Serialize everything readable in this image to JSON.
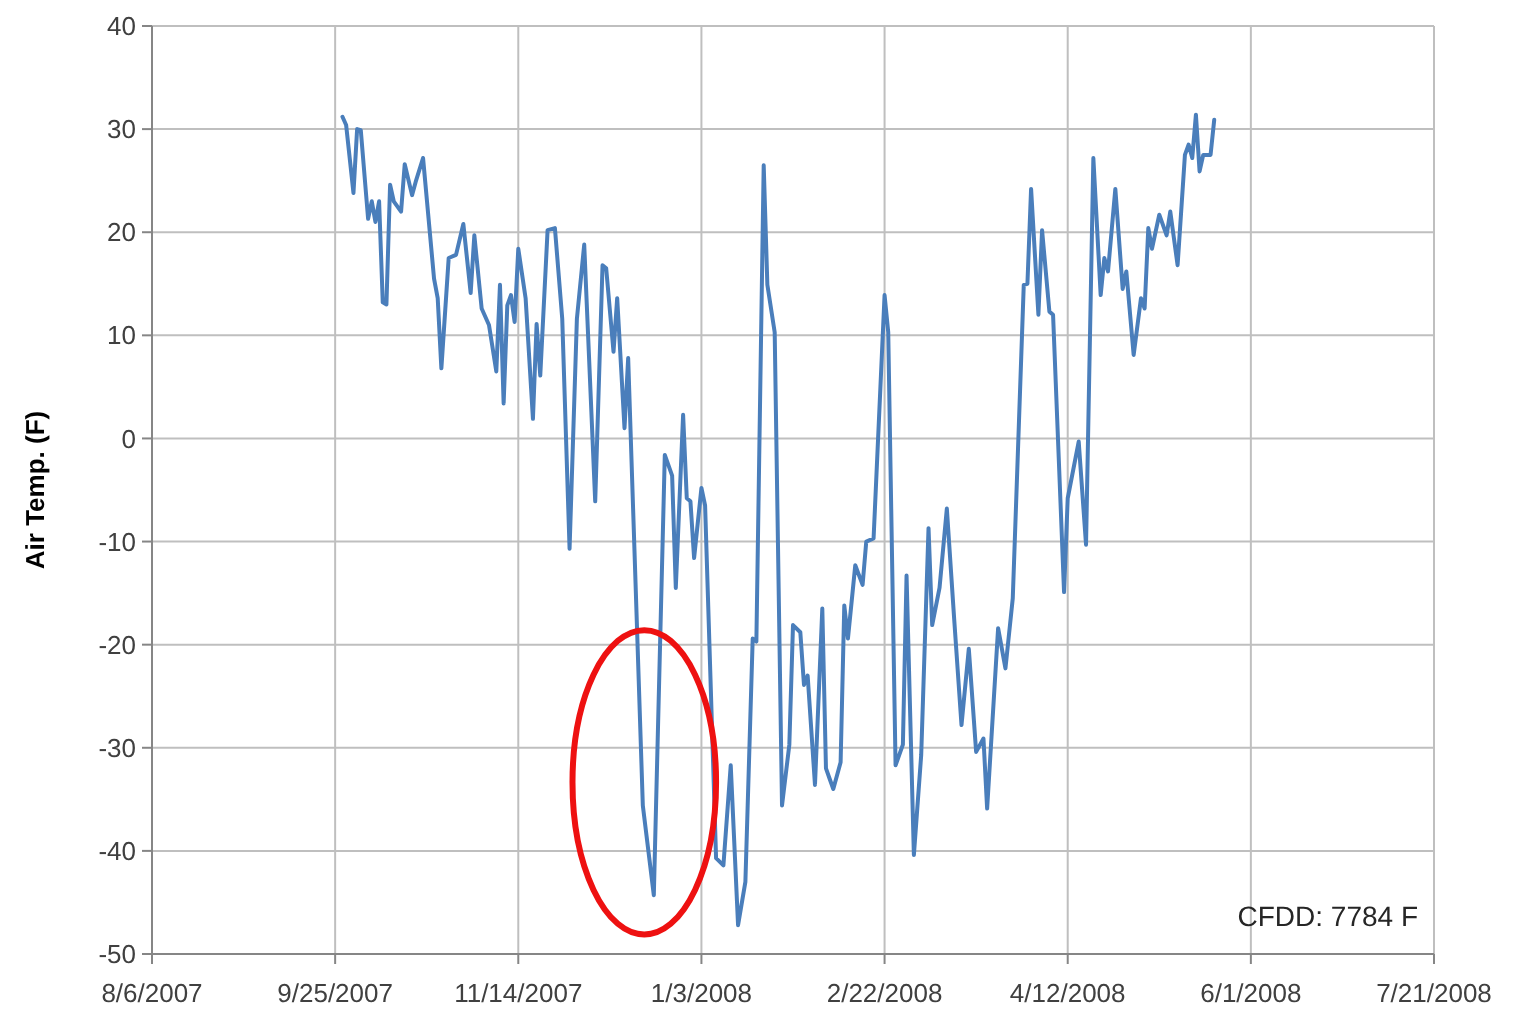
{
  "chart_data": {
    "type": "line",
    "ylabel": "Air Temp. (F)",
    "annotations": [
      "CFDD: 7784 F"
    ],
    "x": [
      "2007-09-27",
      "2007-09-28",
      "2007-09-30",
      "2007-10-01",
      "2007-10-02",
      "2007-10-04",
      "2007-10-05",
      "2007-10-06",
      "2007-10-07",
      "2007-10-08",
      "2007-10-09",
      "2007-10-10",
      "2007-10-11",
      "2007-10-13",
      "2007-10-14",
      "2007-10-16",
      "2007-10-17",
      "2007-10-19",
      "2007-10-22",
      "2007-10-23",
      "2007-10-24",
      "2007-10-26",
      "2007-10-28",
      "2007-10-30",
      "2007-11-01",
      "2007-11-02",
      "2007-11-04",
      "2007-11-06",
      "2007-11-08",
      "2007-11-09",
      "2007-11-10",
      "2007-11-11",
      "2007-11-12",
      "2007-11-13",
      "2007-11-14",
      "2007-11-16",
      "2007-11-18",
      "2007-11-19",
      "2007-11-20",
      "2007-11-22",
      "2007-11-24",
      "2007-11-26",
      "2007-11-28",
      "2007-11-30",
      "2007-12-02",
      "2007-12-05",
      "2007-12-07",
      "2007-12-08",
      "2007-12-10",
      "2007-12-11",
      "2007-12-13",
      "2007-12-14",
      "2007-12-18",
      "2007-12-21",
      "2007-12-24",
      "2007-12-26",
      "2007-12-27",
      "2007-12-29",
      "2007-12-30",
      "2007-12-31",
      "2008-01-01",
      "2008-01-03",
      "2008-01-04",
      "2008-01-07",
      "2008-01-09",
      "2008-01-11",
      "2008-01-13",
      "2008-01-15",
      "2008-01-17",
      "2008-01-18",
      "2008-01-20",
      "2008-01-21",
      "2008-01-23",
      "2008-01-25",
      "2008-01-27",
      "2008-01-28",
      "2008-01-30",
      "2008-01-31",
      "2008-02-01",
      "2008-02-03",
      "2008-02-05",
      "2008-02-06",
      "2008-02-07",
      "2008-02-08",
      "2008-02-10",
      "2008-02-11",
      "2008-02-12",
      "2008-02-14",
      "2008-02-16",
      "2008-02-17",
      "2008-02-19",
      "2008-02-22",
      "2008-02-23",
      "2008-02-25",
      "2008-02-27",
      "2008-02-28",
      "2008-03-01",
      "2008-03-03",
      "2008-03-05",
      "2008-03-06",
      "2008-03-08",
      "2008-03-10",
      "2008-03-12",
      "2008-03-14",
      "2008-03-16",
      "2008-03-18",
      "2008-03-20",
      "2008-03-21",
      "2008-03-24",
      "2008-03-26",
      "2008-03-28",
      "2008-03-31",
      "2008-04-01",
      "2008-04-02",
      "2008-04-04",
      "2008-04-05",
      "2008-04-07",
      "2008-04-08",
      "2008-04-11",
      "2008-04-12",
      "2008-04-15",
      "2008-04-17",
      "2008-04-19",
      "2008-04-21",
      "2008-04-22",
      "2008-04-23",
      "2008-04-25",
      "2008-04-27",
      "2008-04-28",
      "2008-04-30",
      "2008-05-02",
      "2008-05-03",
      "2008-05-04",
      "2008-05-05",
      "2008-05-07",
      "2008-05-09",
      "2008-05-10",
      "2008-05-12",
      "2008-05-14",
      "2008-05-15",
      "2008-05-16",
      "2008-05-17",
      "2008-05-18",
      "2008-05-19",
      "2008-05-21",
      "2008-05-22"
    ],
    "series": [
      {
        "color": "#4a7ebb",
        "values": [
          31.2,
          30.4,
          23.8,
          30,
          29.9,
          21.3,
          23,
          21,
          23,
          13.2,
          13,
          24.6,
          23,
          22,
          26.6,
          23.6,
          24.9,
          27.2,
          15.5,
          13.6,
          6.8,
          17.5,
          17.8,
          20.8,
          14.1,
          19.7,
          12.6,
          11,
          6.5,
          14.9,
          3.4,
          12.9,
          13.9,
          11.3,
          18.4,
          13.6,
          1.9,
          11.1,
          6.1,
          20.2,
          20.4,
          11.6,
          -10.7,
          11.6,
          18.8,
          -6.1,
          16.8,
          16.5,
          8.4,
          13.6,
          1,
          7.8,
          -35.6,
          -44.3,
          -1.6,
          -3.6,
          -14.5,
          2.3,
          -5.8,
          -6.1,
          -11.6,
          -4.8,
          -6.5,
          -40.7,
          -41.4,
          -31.7,
          -47.2,
          -43,
          -19.4,
          -19.7,
          26.5,
          14.9,
          10.3,
          -35.6,
          -29.7,
          -18.1,
          -18.8,
          -23.9,
          -23,
          -33.6,
          -16.5,
          -32,
          -33,
          -34,
          -31.4,
          -16.2,
          -19.4,
          -12.3,
          -14.2,
          -10,
          -9.7,
          13.9,
          10.3,
          -31.7,
          -29.7,
          -13.3,
          -40.4,
          -30.7,
          -8.7,
          -18.1,
          -14.5,
          -6.8,
          -17.5,
          -27.8,
          -20.4,
          -30.4,
          -29.1,
          -35.9,
          -18.4,
          -22.3,
          -15.5,
          14.9,
          15,
          24.2,
          12,
          20.2,
          12.3,
          12,
          -14.9,
          -5.8,
          -0.3,
          -10.3,
          27.2,
          13.9,
          17.5,
          16.2,
          24.2,
          14.5,
          16.2,
          8.1,
          13.6,
          12.6,
          20.4,
          18.4,
          21.7,
          19.7,
          22,
          16.8,
          27.5,
          28.5,
          27.2,
          31.4,
          25.9,
          27.5,
          27.5,
          30.9
        ]
      }
    ],
    "xlim": [
      "2007-08-06",
      "2008-07-21"
    ],
    "xticks": [
      {
        "value": "2007-08-06",
        "label": "8/6/2007"
      },
      {
        "value": "2007-09-25",
        "label": "9/25/2007"
      },
      {
        "value": "2007-11-14",
        "label": "11/14/2007"
      },
      {
        "value": "2008-01-03",
        "label": "1/3/2008"
      },
      {
        "value": "2008-02-22",
        "label": "2/22/2008"
      },
      {
        "value": "2008-04-12",
        "label": "4/12/2008"
      },
      {
        "value": "2008-06-01",
        "label": "6/1/2008"
      },
      {
        "value": "2008-07-21",
        "label": "7/21/2008"
      }
    ],
    "ylim": [
      -50,
      40
    ],
    "yticks": [
      -50,
      -40,
      -30,
      -20,
      -10,
      0,
      10,
      20,
      30,
      40
    ],
    "grid": true,
    "marker": "none",
    "line_style": "solid"
  }
}
